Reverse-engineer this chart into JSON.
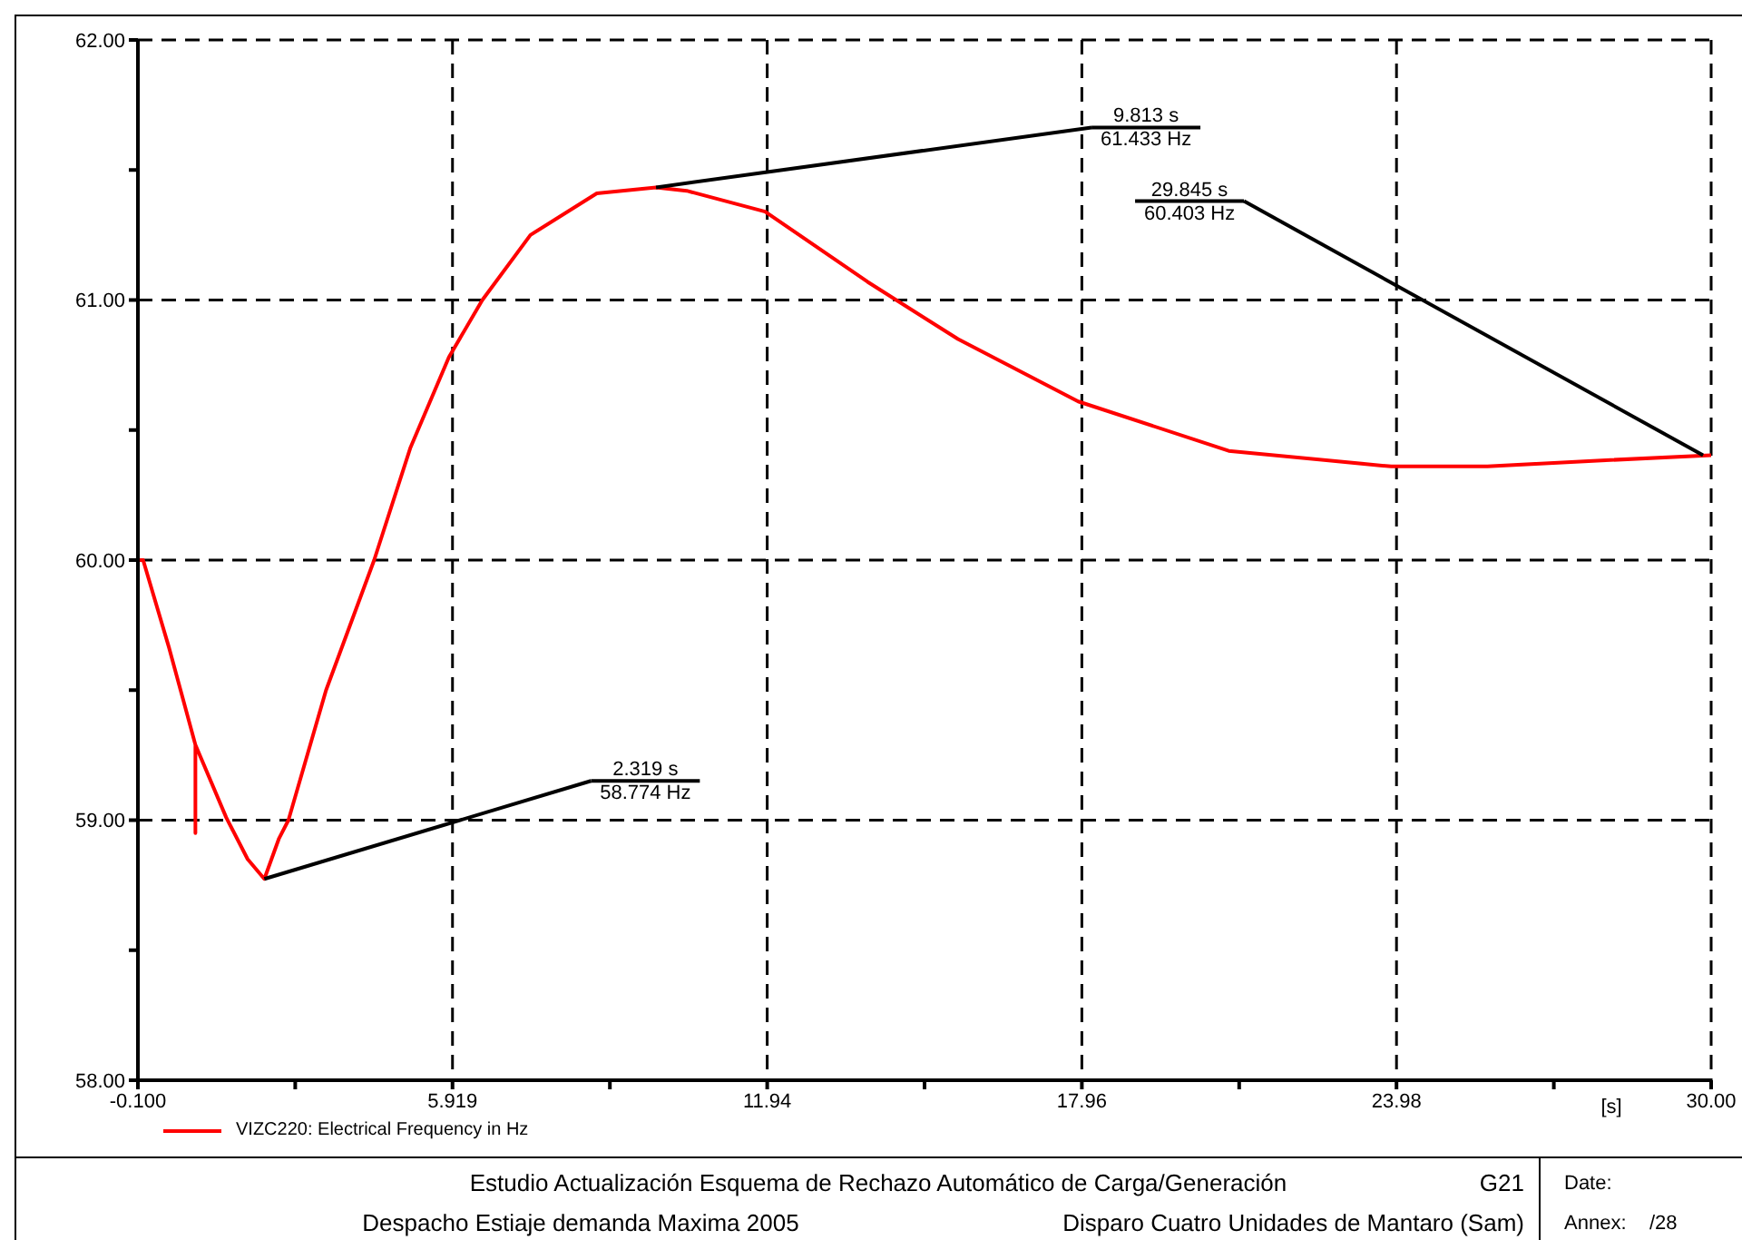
{
  "chart_data": {
    "type": "line",
    "title": "Estudio Actualización Esquema de Rechazo Automático de Carga/Generación",
    "subtitle": "Despacho Estiaje demanda Maxima 2005",
    "xlabel": "[s]",
    "x": [
      -0.1,
      0.0,
      0.5,
      1.0,
      1.0,
      1.0,
      1.59,
      2.0,
      2.319,
      2.6,
      2.78,
      3.5,
      4.42,
      5.11,
      5.85,
      6.49,
      7.41,
      8.68,
      9.813,
      10.4,
      11.9,
      13.86,
      15.59,
      17.89,
      20.77,
      23.88,
      25.72,
      27.57,
      30.0
    ],
    "series": [
      {
        "name": "VIZC220: Electrical Frequency in Hz",
        "color": "#ff0000",
        "values": [
          60.0,
          60.0,
          59.66,
          59.29,
          58.95,
          59.29,
          59.01,
          58.85,
          58.774,
          58.93,
          59.0,
          59.5,
          60.0,
          60.43,
          60.78,
          61.0,
          61.25,
          61.41,
          61.433,
          61.42,
          61.34,
          61.07,
          60.85,
          60.61,
          60.42,
          60.36,
          60.36,
          60.38,
          60.403
        ]
      }
    ],
    "xlim": [
      -0.1,
      30.0
    ],
    "xticks": [
      {
        "value": -0.1,
        "label": "-0.100"
      },
      {
        "value": 2.91,
        "label": null
      },
      {
        "value": 5.919,
        "label": "5.919"
      },
      {
        "value": 8.93,
        "label": null
      },
      {
        "value": 11.94,
        "label": "11.94"
      },
      {
        "value": 14.95,
        "label": null
      },
      {
        "value": 17.96,
        "label": "17.96"
      },
      {
        "value": 20.97,
        "label": null
      },
      {
        "value": 23.98,
        "label": "23.98"
      },
      {
        "value": 26.99,
        "label": null
      },
      {
        "value": 30.0,
        "label": "30.00"
      }
    ],
    "ylim": [
      58,
      62
    ],
    "yticks": [
      {
        "value": 58,
        "label": "58.00"
      },
      {
        "value": 58.5,
        "label": null
      },
      {
        "value": 59,
        "label": "59.00"
      },
      {
        "value": 59.5,
        "label": null
      },
      {
        "value": 60,
        "label": "60.00"
      },
      {
        "value": 60.5,
        "label": null
      },
      {
        "value": 61,
        "label": "61.00"
      },
      {
        "value": 61.5,
        "label": null
      },
      {
        "value": 62,
        "label": "62.00"
      }
    ],
    "grid": true,
    "legend": "bottom left",
    "marker": "none",
    "line_style": "solid",
    "annotations": [
      {
        "text": "2.319 s\n58.774 Hz",
        "x": 2.319,
        "y": 58.774
      },
      {
        "text": "9.813 s\n61.433 Hz",
        "x": 9.813,
        "y": 61.433
      },
      {
        "text": "29.845 s\n60.403 Hz",
        "x": 29.845,
        "y": 60.403
      },
      "Disparo Cuatro Unidades de Mantaro (Sam)",
      "G21",
      "Date:",
      "Annex:",
      "/28"
    ]
  }
}
